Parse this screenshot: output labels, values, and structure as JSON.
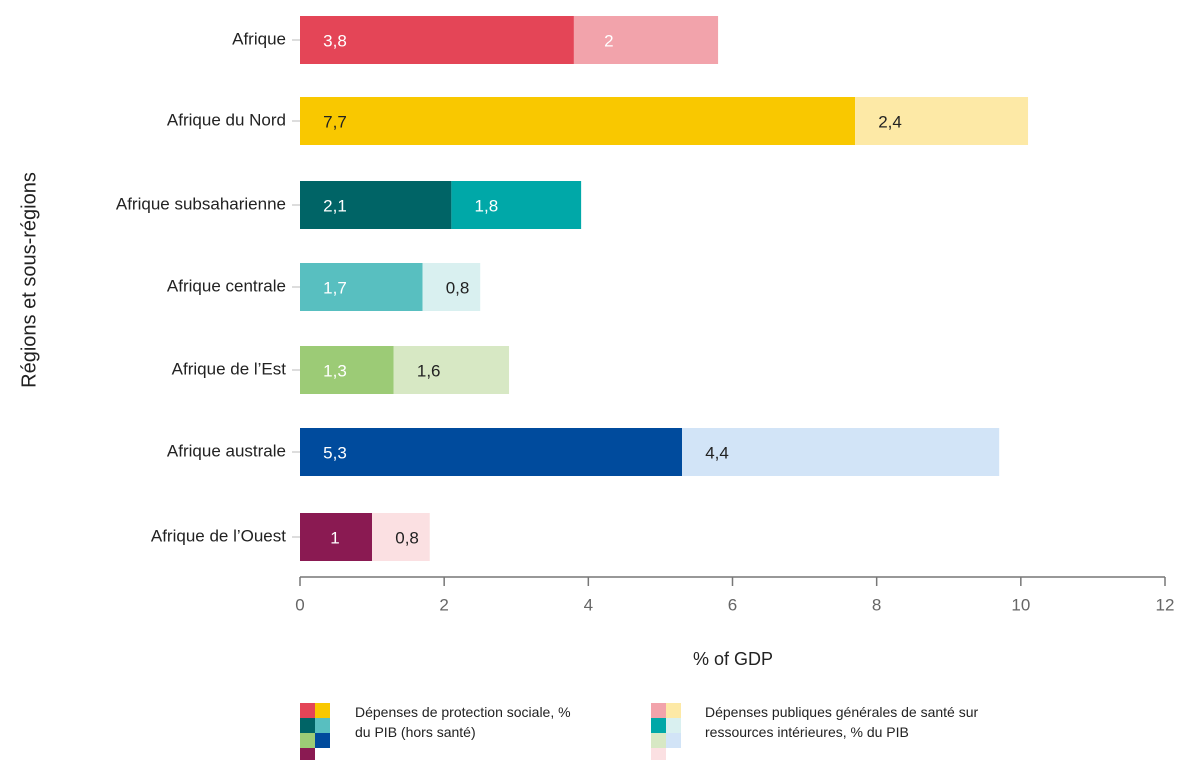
{
  "chart_data": {
    "type": "stacked_barh",
    "categories": [
      "Afrique",
      "Afrique du Nord",
      "Afrique subsaharienne",
      "Afrique centrale",
      "Afrique de l’Est",
      "Afrique australe",
      "Afrique de l’Ouest"
    ],
    "series": [
      {
        "name": "Dépenses de protection sociale, % du PIB (hors santé)",
        "colors": [
          "#e44557",
          "#f9c800",
          "#006466",
          "#58bfc0",
          "#9ccb76",
          "#004b9d",
          "#8a1a52"
        ],
        "label_colors": [
          "#ffffff",
          "#222222",
          "#ffffff",
          "#ffffff",
          "#ffffff",
          "#ffffff",
          "#ffffff"
        ],
        "values": [
          3.8,
          7.7,
          2.1,
          1.7,
          1.3,
          5.3,
          1
        ],
        "value_labels": [
          "3,8",
          "7,7",
          "2,1",
          "1,7",
          "1,3",
          "5,3",
          "1"
        ]
      },
      {
        "name": "Dépenses publiques générales de santé sur ressources intérieures, % du PIB",
        "colors": [
          "#f2a3ab",
          "#fde9a6",
          "#00a8a8",
          "#d9f0f0",
          "#d7e8c4",
          "#d2e4f7",
          "#fbe0e2"
        ],
        "label_colors": [
          "#ffffff",
          "#222222",
          "#ffffff",
          "#222222",
          "#222222",
          "#222222",
          "#222222"
        ],
        "values": [
          2,
          2.4,
          1.8,
          0.8,
          1.6,
          4.4,
          0.8
        ],
        "value_labels": [
          "2",
          "2,4",
          "1,8",
          "0,8",
          "1,6",
          "4,4",
          "0,8"
        ]
      }
    ],
    "xlabel": "% of GDP",
    "ylabel": "Régions et sous-régions",
    "xlim": [
      0,
      12
    ],
    "xticks": [
      0,
      2,
      4,
      6,
      8,
      10,
      12
    ]
  }
}
